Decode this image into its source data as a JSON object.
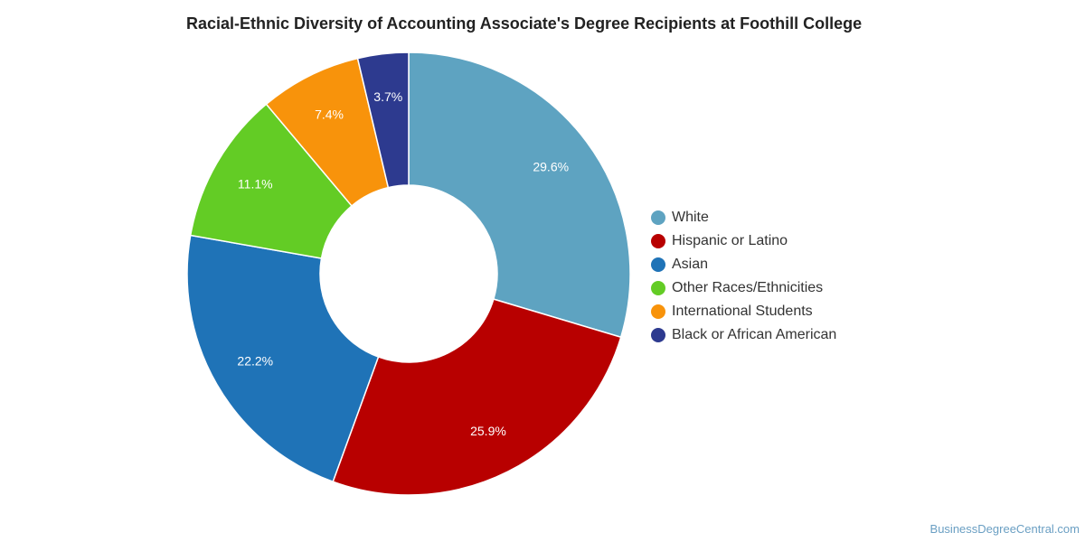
{
  "chart_data": {
    "type": "pie",
    "title": "Racial-Ethnic Diversity of Accounting Associate's Degree Recipients at Foothill College",
    "categories": [
      "White",
      "Hispanic or Latino",
      "Asian",
      "Other Races/Ethnicities",
      "International Students",
      "Black or African American"
    ],
    "values": [
      29.6,
      25.9,
      22.2,
      11.1,
      7.4,
      3.7
    ],
    "value_labels": [
      "29.6%",
      "25.9%",
      "22.2%",
      "11.1%",
      "7.4%",
      "3.7%"
    ],
    "colors": [
      "#5ea3c1",
      "#b80000",
      "#1f73b7",
      "#63cc25",
      "#f8930b",
      "#2d3a8f"
    ],
    "donut": true,
    "legend_position": "right"
  },
  "credit": "BusinessDegreeCentral.com"
}
